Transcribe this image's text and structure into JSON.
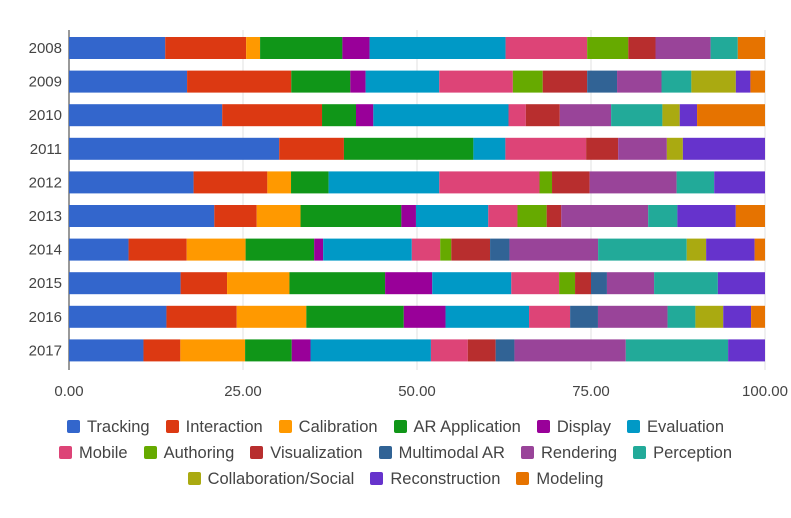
{
  "chart_data": {
    "type": "bar",
    "orientation": "horizontal",
    "stacked": true,
    "title": "",
    "xlabel": "",
    "ylabel": "",
    "xlim": [
      0,
      100
    ],
    "x_ticks": [
      "0.00",
      "25.00",
      "50.00",
      "75.00",
      "100.00"
    ],
    "categories": [
      "2008",
      "2009",
      "2010",
      "2011",
      "2012",
      "2013",
      "2014",
      "2015",
      "2016",
      "2017"
    ],
    "legend_position": "bottom",
    "series": [
      {
        "name": "Tracking",
        "color": "#3366cc",
        "values": [
          13.8,
          17.0,
          22.1,
          30.2,
          17.9,
          20.9,
          8.6,
          16.1,
          14.0,
          10.7
        ]
      },
      {
        "name": "Interaction",
        "color": "#dc3912",
        "values": [
          11.6,
          15.0,
          14.4,
          9.3,
          10.6,
          6.1,
          8.4,
          6.7,
          10.1,
          5.3
        ]
      },
      {
        "name": "Calibration",
        "color": "#ff9900",
        "values": [
          2.0,
          0,
          0,
          0,
          3.4,
          6.3,
          8.5,
          9.0,
          10.0,
          9.3
        ]
      },
      {
        "name": "AR Application",
        "color": "#109618",
        "values": [
          11.8,
          8.5,
          4.9,
          18.6,
          5.4,
          14.5,
          9.9,
          13.8,
          14.0,
          6.7
        ]
      },
      {
        "name": "Display",
        "color": "#990099",
        "values": [
          3.9,
          2.2,
          2.5,
          0,
          0,
          2.1,
          1.3,
          6.8,
          6.0,
          2.7
        ]
      },
      {
        "name": "Evaluation",
        "color": "#0099c6",
        "values": [
          19.5,
          10.6,
          19.5,
          4.6,
          15.9,
          10.4,
          12.8,
          11.4,
          12.0,
          17.3
        ]
      },
      {
        "name": "Mobile",
        "color": "#dd4477",
        "values": [
          11.7,
          10.6,
          2.5,
          11.6,
          14.4,
          4.2,
          4.1,
          6.9,
          5.9,
          5.3
        ]
      },
      {
        "name": "Authoring",
        "color": "#66aa00",
        "values": [
          5.9,
          4.3,
          0,
          0,
          1.8,
          4.2,
          1.6,
          2.3,
          0,
          0
        ]
      },
      {
        "name": "Visualization",
        "color": "#b82e2e",
        "values": [
          3.9,
          6.4,
          4.9,
          4.6,
          5.4,
          2.1,
          5.6,
          2.3,
          0,
          4.0
        ]
      },
      {
        "name": "Multimodal AR",
        "color": "#316395",
        "values": [
          0,
          4.3,
          0,
          0,
          0,
          0,
          2.8,
          2.3,
          4.0,
          2.7
        ]
      },
      {
        "name": "Rendering",
        "color": "#994499",
        "values": [
          7.9,
          6.4,
          7.4,
          7.0,
          12.5,
          12.5,
          12.8,
          6.8,
          10.0,
          16.0
        ]
      },
      {
        "name": "Perception",
        "color": "#22aa99",
        "values": [
          3.9,
          4.3,
          7.4,
          0,
          5.4,
          4.2,
          12.8,
          9.2,
          4.0,
          14.7
        ]
      },
      {
        "name": "Collaboration/Social",
        "color": "#aaaa11",
        "values": [
          0,
          6.4,
          2.5,
          2.3,
          0,
          0,
          2.8,
          0,
          4.0,
          0
        ]
      },
      {
        "name": "Reconstruction",
        "color": "#6633cc",
        "values": [
          0,
          2.1,
          2.5,
          11.8,
          7.3,
          8.4,
          7.0,
          6.8,
          4.0,
          5.3
        ]
      },
      {
        "name": "Modeling",
        "color": "#e67300",
        "values": [
          3.9,
          2.1,
          9.8,
          0,
          0,
          4.2,
          1.5,
          0,
          2.0,
          0
        ]
      }
    ]
  }
}
